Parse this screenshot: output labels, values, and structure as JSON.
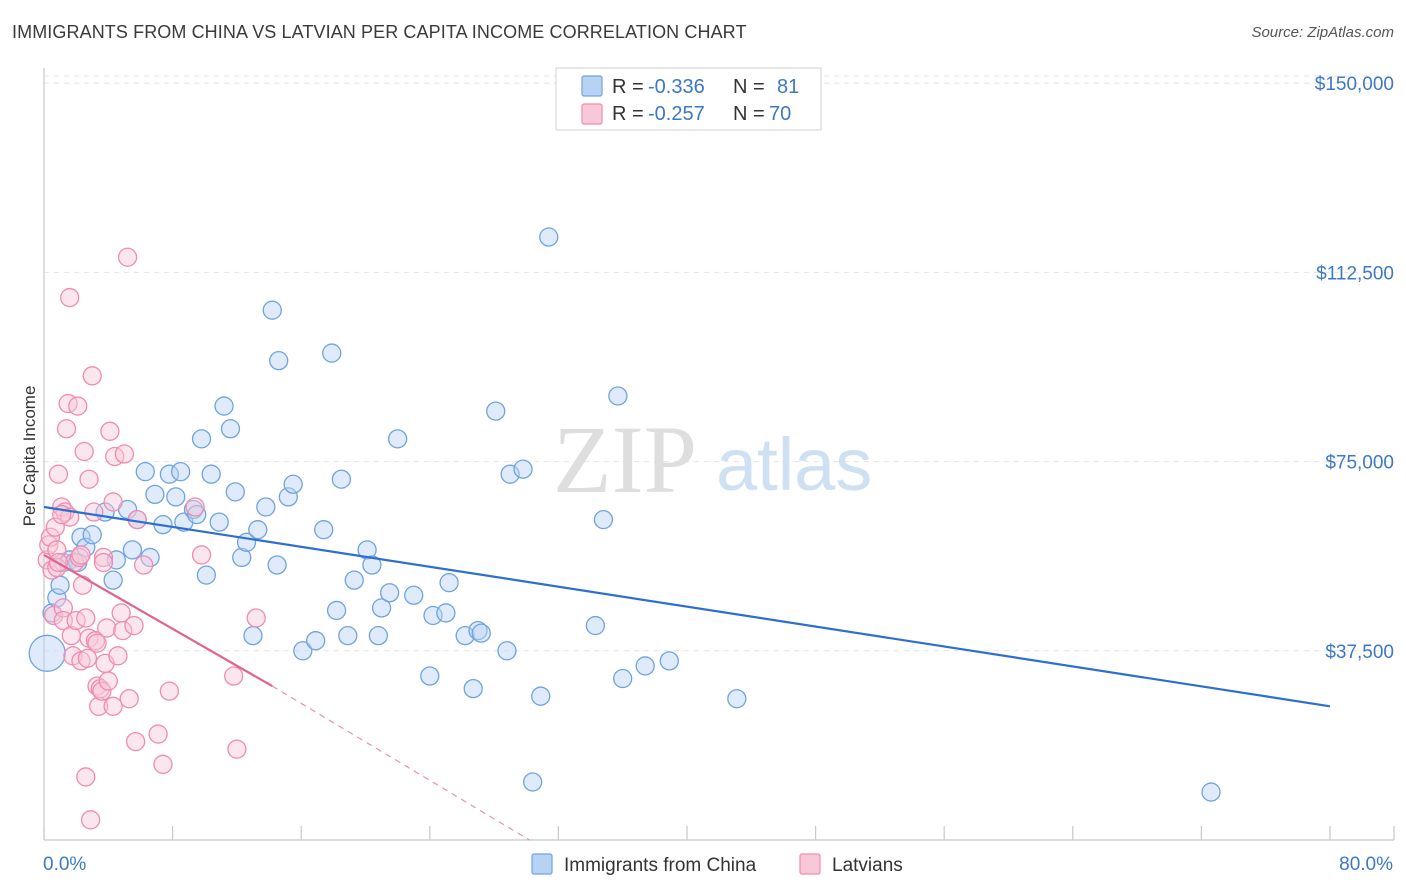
{
  "title": "IMMIGRANTS FROM CHINA VS LATVIAN PER CAPITA INCOME CORRELATION CHART",
  "source": "Source: ZipAtlas.com",
  "watermark": {
    "zip": "ZIP",
    "atlas": "atlas"
  },
  "colors": {
    "blue": "#6fa3e0",
    "blue_line": "#2d6fd0",
    "pink": "#f08bb0",
    "pink_line": "#e0648f",
    "tick_text": "#3b78c7",
    "grid": "#e4e4e4"
  },
  "legend": {
    "rows": [
      {
        "r_label": "R = ",
        "r_value": "-0.336",
        "n_label": "N = ",
        "n_value": " 81"
      },
      {
        "r_label": "R = ",
        "r_value": "-0.257",
        "n_label": "N = ",
        "n_value": "70"
      }
    ]
  },
  "bottom_legend": [
    "Immigrants from China",
    "Latvians"
  ],
  "chart_data": {
    "type": "scatter",
    "title": "IMMIGRANTS FROM CHINA VS LATVIAN PER CAPITA INCOME CORRELATION CHART",
    "xlabel": "",
    "ylabel": "Per Capita Income",
    "xlim": [
      0,
      80
    ],
    "ylim": [
      0,
      153000
    ],
    "x_tick_labels": [
      "0.0%",
      "80.0%"
    ],
    "y_ticks": [
      37500,
      75000,
      112500,
      150000
    ],
    "y_tick_labels": [
      "$37,500",
      "$75,000",
      "$112,500",
      "$150,000"
    ],
    "grid": true,
    "legend_position": "top-center",
    "series": [
      {
        "name": "Immigrants from China",
        "r": -0.336,
        "n": 81,
        "trend": {
          "x": [
            0,
            80
          ],
          "y": [
            66000,
            26500
          ]
        },
        "points": [
          [
            0.2,
            37000
          ],
          [
            0.5,
            45000
          ],
          [
            0.8,
            48000
          ],
          [
            1.0,
            50500
          ],
          [
            1.2,
            55000
          ],
          [
            1.6,
            55500
          ],
          [
            2.1,
            55000
          ],
          [
            2.3,
            60000
          ],
          [
            2.6,
            58000
          ],
          [
            3.0,
            60500
          ],
          [
            3.8,
            65000
          ],
          [
            4.3,
            51500
          ],
          [
            4.5,
            55500
          ],
          [
            5.2,
            65500
          ],
          [
            5.5,
            57500
          ],
          [
            5.8,
            63500
          ],
          [
            6.3,
            73000
          ],
          [
            6.6,
            56000
          ],
          [
            6.9,
            68500
          ],
          [
            7.4,
            62500
          ],
          [
            7.8,
            72500
          ],
          [
            8.2,
            68000
          ],
          [
            8.5,
            73000
          ],
          [
            8.7,
            63000
          ],
          [
            9.3,
            65500
          ],
          [
            9.5,
            64500
          ],
          [
            9.8,
            79500
          ],
          [
            10.1,
            52500
          ],
          [
            10.4,
            72500
          ],
          [
            10.9,
            63000
          ],
          [
            11.2,
            86000
          ],
          [
            11.6,
            81500
          ],
          [
            11.9,
            69000
          ],
          [
            12.3,
            56000
          ],
          [
            12.6,
            59000
          ],
          [
            13.0,
            40500
          ],
          [
            13.3,
            61500
          ],
          [
            13.8,
            66000
          ],
          [
            14.2,
            105000
          ],
          [
            14.5,
            54500
          ],
          [
            14.6,
            95000
          ],
          [
            15.2,
            68000
          ],
          [
            15.5,
            70500
          ],
          [
            16.1,
            37500
          ],
          [
            16.9,
            39500
          ],
          [
            17.4,
            61500
          ],
          [
            17.9,
            96500
          ],
          [
            18.2,
            45500
          ],
          [
            18.5,
            71500
          ],
          [
            18.9,
            40500
          ],
          [
            19.3,
            51500
          ],
          [
            20.1,
            57500
          ],
          [
            20.4,
            54500
          ],
          [
            20.8,
            40500
          ],
          [
            21.0,
            46000
          ],
          [
            21.5,
            49000
          ],
          [
            22.0,
            79500
          ],
          [
            23.0,
            48500
          ],
          [
            24.0,
            32500
          ],
          [
            24.2,
            44500
          ],
          [
            25.0,
            45000
          ],
          [
            25.2,
            51000
          ],
          [
            26.2,
            40500
          ],
          [
            26.7,
            30000
          ],
          [
            27.0,
            41500
          ],
          [
            27.2,
            41000
          ],
          [
            28.1,
            85000
          ],
          [
            28.8,
            37500
          ],
          [
            29.0,
            72500
          ],
          [
            29.8,
            73500
          ],
          [
            30.4,
            11500
          ],
          [
            30.9,
            28500
          ],
          [
            31.4,
            119500
          ],
          [
            34.3,
            42500
          ],
          [
            34.8,
            63500
          ],
          [
            35.7,
            88000
          ],
          [
            36.0,
            32000
          ],
          [
            37.4,
            34500
          ],
          [
            38.9,
            35500
          ],
          [
            43.1,
            28000
          ],
          [
            72.6,
            9500
          ]
        ]
      },
      {
        "name": "Latvians",
        "r": -0.257,
        "n": 70,
        "trend": {
          "x": [
            0,
            14.2
          ],
          "y": [
            56500,
            30500
          ]
        },
        "trend_dashed": {
          "x": [
            14.2,
            30.2
          ],
          "y": [
            30500,
            0
          ]
        },
        "points": [
          [
            0.2,
            55500
          ],
          [
            0.3,
            58500
          ],
          [
            0.4,
            60000
          ],
          [
            0.5,
            53500
          ],
          [
            0.6,
            44500
          ],
          [
            0.7,
            62000
          ],
          [
            0.8,
            57500
          ],
          [
            0.8,
            54000
          ],
          [
            0.9,
            72500
          ],
          [
            1.1,
            66000
          ],
          [
            1.2,
            46000
          ],
          [
            1.2,
            43500
          ],
          [
            1.3,
            65000
          ],
          [
            1.4,
            81500
          ],
          [
            1.5,
            86500
          ],
          [
            1.6,
            64000
          ],
          [
            1.6,
            107500
          ],
          [
            1.7,
            40500
          ],
          [
            1.8,
            36500
          ],
          [
            1.9,
            55000
          ],
          [
            2.0,
            43500
          ],
          [
            2.1,
            86000
          ],
          [
            2.2,
            56000
          ],
          [
            2.3,
            56500
          ],
          [
            2.3,
            35500
          ],
          [
            2.4,
            50500
          ],
          [
            2.5,
            77000
          ],
          [
            2.6,
            12500
          ],
          [
            2.7,
            36000
          ],
          [
            2.8,
            71500
          ],
          [
            2.8,
            40000
          ],
          [
            2.9,
            4000
          ],
          [
            3.0,
            92000
          ],
          [
            3.1,
            65000
          ],
          [
            3.2,
            39500
          ],
          [
            3.3,
            39000
          ],
          [
            3.3,
            30500
          ],
          [
            3.4,
            26500
          ],
          [
            3.5,
            30000
          ],
          [
            3.6,
            29500
          ],
          [
            3.7,
            56000
          ],
          [
            3.8,
            35000
          ],
          [
            3.9,
            42000
          ],
          [
            4.0,
            31500
          ],
          [
            4.1,
            81000
          ],
          [
            4.3,
            26500
          ],
          [
            4.3,
            67000
          ],
          [
            4.4,
            76000
          ],
          [
            4.6,
            36500
          ],
          [
            4.8,
            45000
          ],
          [
            4.9,
            41500
          ],
          [
            5.0,
            76500
          ],
          [
            5.3,
            28000
          ],
          [
            5.6,
            42500
          ],
          [
            5.7,
            19500
          ],
          [
            5.8,
            63500
          ],
          [
            6.2,
            54500
          ],
          [
            7.1,
            21000
          ],
          [
            7.4,
            15000
          ],
          [
            7.8,
            29500
          ],
          [
            9.4,
            66000
          ],
          [
            9.8,
            56500
          ],
          [
            11.8,
            32500
          ],
          [
            12.0,
            18000
          ],
          [
            13.2,
            44000
          ],
          [
            5.2,
            115500
          ],
          [
            1.1,
            64500
          ],
          [
            0.9,
            55000
          ],
          [
            2.6,
            44000
          ],
          [
            3.7,
            55000
          ]
        ]
      }
    ]
  }
}
